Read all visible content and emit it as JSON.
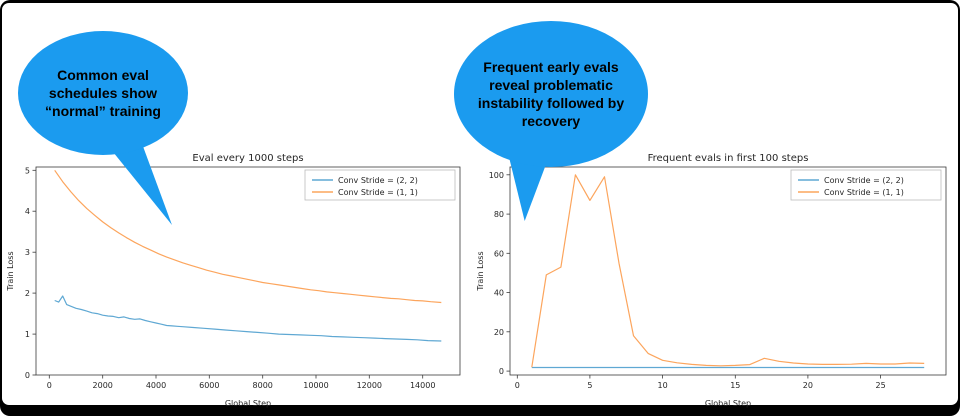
{
  "colors": {
    "bubble": "#1b9bef",
    "series_blue": "#5fa8d3",
    "series_orange": "#fca55d",
    "spine": "#3a3a3a",
    "legend_border": "#bbbbbb"
  },
  "callouts": {
    "left": {
      "text": "Common eval schedules show “normal” training"
    },
    "right": {
      "text": "Frequent early evals reveal problematic instability followed by recovery"
    }
  },
  "chart_data": [
    {
      "type": "line",
      "title": "Eval every 1000 steps",
      "xlabel": "Global Step",
      "ylabel": "Train Loss",
      "xlim": [
        -500,
        15400
      ],
      "ylim": [
        0,
        5.08
      ],
      "xticks": [
        0,
        2000,
        4000,
        6000,
        8000,
        10000,
        12000,
        14000
      ],
      "yticks": [
        0,
        1,
        2,
        3,
        4,
        5
      ],
      "grid": false,
      "legend_position": "upper right",
      "series": [
        {
          "name": "Conv Stride =  (2, 2)",
          "color_key": "series_blue",
          "x": [
            200,
            350,
            500,
            650,
            800,
            1000,
            1200,
            1400,
            1600,
            1800,
            2000,
            2200,
            2400,
            2600,
            2800,
            3000,
            3200,
            3400,
            3600,
            3800,
            4000,
            4200,
            4400,
            4600,
            4800,
            5000,
            5400,
            5800,
            6200,
            6600,
            7000,
            7400,
            7800,
            8200,
            8600,
            9000,
            9400,
            9800,
            10200,
            10600,
            11000,
            11400,
            11800,
            12200,
            12600,
            13000,
            13400,
            13800,
            14200,
            14700
          ],
          "y": [
            1.82,
            1.78,
            1.93,
            1.72,
            1.68,
            1.63,
            1.6,
            1.56,
            1.52,
            1.5,
            1.46,
            1.44,
            1.43,
            1.4,
            1.42,
            1.38,
            1.36,
            1.37,
            1.33,
            1.3,
            1.27,
            1.24,
            1.21,
            1.2,
            1.19,
            1.18,
            1.16,
            1.14,
            1.12,
            1.1,
            1.08,
            1.06,
            1.04,
            1.02,
            1.0,
            0.99,
            0.98,
            0.97,
            0.96,
            0.94,
            0.93,
            0.92,
            0.91,
            0.9,
            0.89,
            0.88,
            0.87,
            0.86,
            0.84,
            0.83
          ]
        },
        {
          "name": "Conv Stride =  (1, 1)",
          "color_key": "series_orange",
          "x": [
            200,
            500,
            800,
            1100,
            1400,
            1700,
            2000,
            2300,
            2600,
            2900,
            3200,
            3500,
            3800,
            4100,
            4400,
            4700,
            5000,
            5300,
            5600,
            5900,
            6200,
            6500,
            6800,
            7100,
            7400,
            7700,
            8000,
            8300,
            8600,
            8900,
            9200,
            9500,
            9800,
            10100,
            10400,
            10700,
            11000,
            11300,
            11600,
            11900,
            12200,
            12500,
            12800,
            13100,
            13400,
            13700,
            14000,
            14300,
            14700
          ],
          "y": [
            5.0,
            4.72,
            4.48,
            4.26,
            4.07,
            3.9,
            3.74,
            3.6,
            3.47,
            3.35,
            3.24,
            3.14,
            3.05,
            2.96,
            2.88,
            2.81,
            2.74,
            2.68,
            2.62,
            2.56,
            2.51,
            2.46,
            2.42,
            2.38,
            2.34,
            2.3,
            2.26,
            2.23,
            2.2,
            2.17,
            2.14,
            2.11,
            2.08,
            2.06,
            2.03,
            2.01,
            1.99,
            1.97,
            1.95,
            1.93,
            1.91,
            1.89,
            1.87,
            1.86,
            1.84,
            1.82,
            1.81,
            1.79,
            1.77
          ]
        }
      ]
    },
    {
      "type": "line",
      "title": "Frequent evals in first 100 steps",
      "xlabel": "Global Step",
      "ylabel": "Train Loss",
      "xlim": [
        -0.5,
        29.5
      ],
      "ylim": [
        -2,
        104
      ],
      "xticks": [
        0,
        5,
        10,
        15,
        20,
        25
      ],
      "yticks": [
        0,
        20,
        40,
        60,
        80,
        100
      ],
      "grid": false,
      "legend_position": "upper right",
      "series": [
        {
          "name": "Conv Stride =  (2, 2)",
          "color_key": "series_blue",
          "x": [
            1,
            2,
            3,
            4,
            5,
            6,
            7,
            8,
            9,
            10,
            11,
            12,
            13,
            14,
            15,
            16,
            17,
            18,
            19,
            20,
            21,
            22,
            23,
            24,
            25,
            26,
            27,
            28
          ],
          "y": [
            1.8,
            1.8,
            1.8,
            1.8,
            1.8,
            1.8,
            1.8,
            1.8,
            1.8,
            1.8,
            1.8,
            1.8,
            1.8,
            1.8,
            1.8,
            1.8,
            1.8,
            1.8,
            1.8,
            1.8,
            1.8,
            1.8,
            1.8,
            1.8,
            1.8,
            1.8,
            1.8,
            1.8
          ]
        },
        {
          "name": "Conv Stride =  (1, 1)",
          "color_key": "series_orange",
          "x": [
            1,
            2,
            3,
            4,
            5,
            6,
            7,
            8,
            9,
            10,
            11,
            12,
            13,
            14,
            15,
            16,
            17,
            18,
            19,
            20,
            21,
            22,
            23,
            24,
            25,
            26,
            27,
            28
          ],
          "y": [
            2,
            49,
            53,
            100,
            87,
            99,
            55,
            18,
            9,
            5.5,
            4.2,
            3.4,
            2.9,
            2.7,
            2.9,
            3.3,
            6.5,
            5.0,
            4.1,
            3.6,
            3.4,
            3.4,
            3.5,
            3.9,
            3.6,
            3.6,
            4.1,
            3.9
          ]
        }
      ]
    }
  ]
}
